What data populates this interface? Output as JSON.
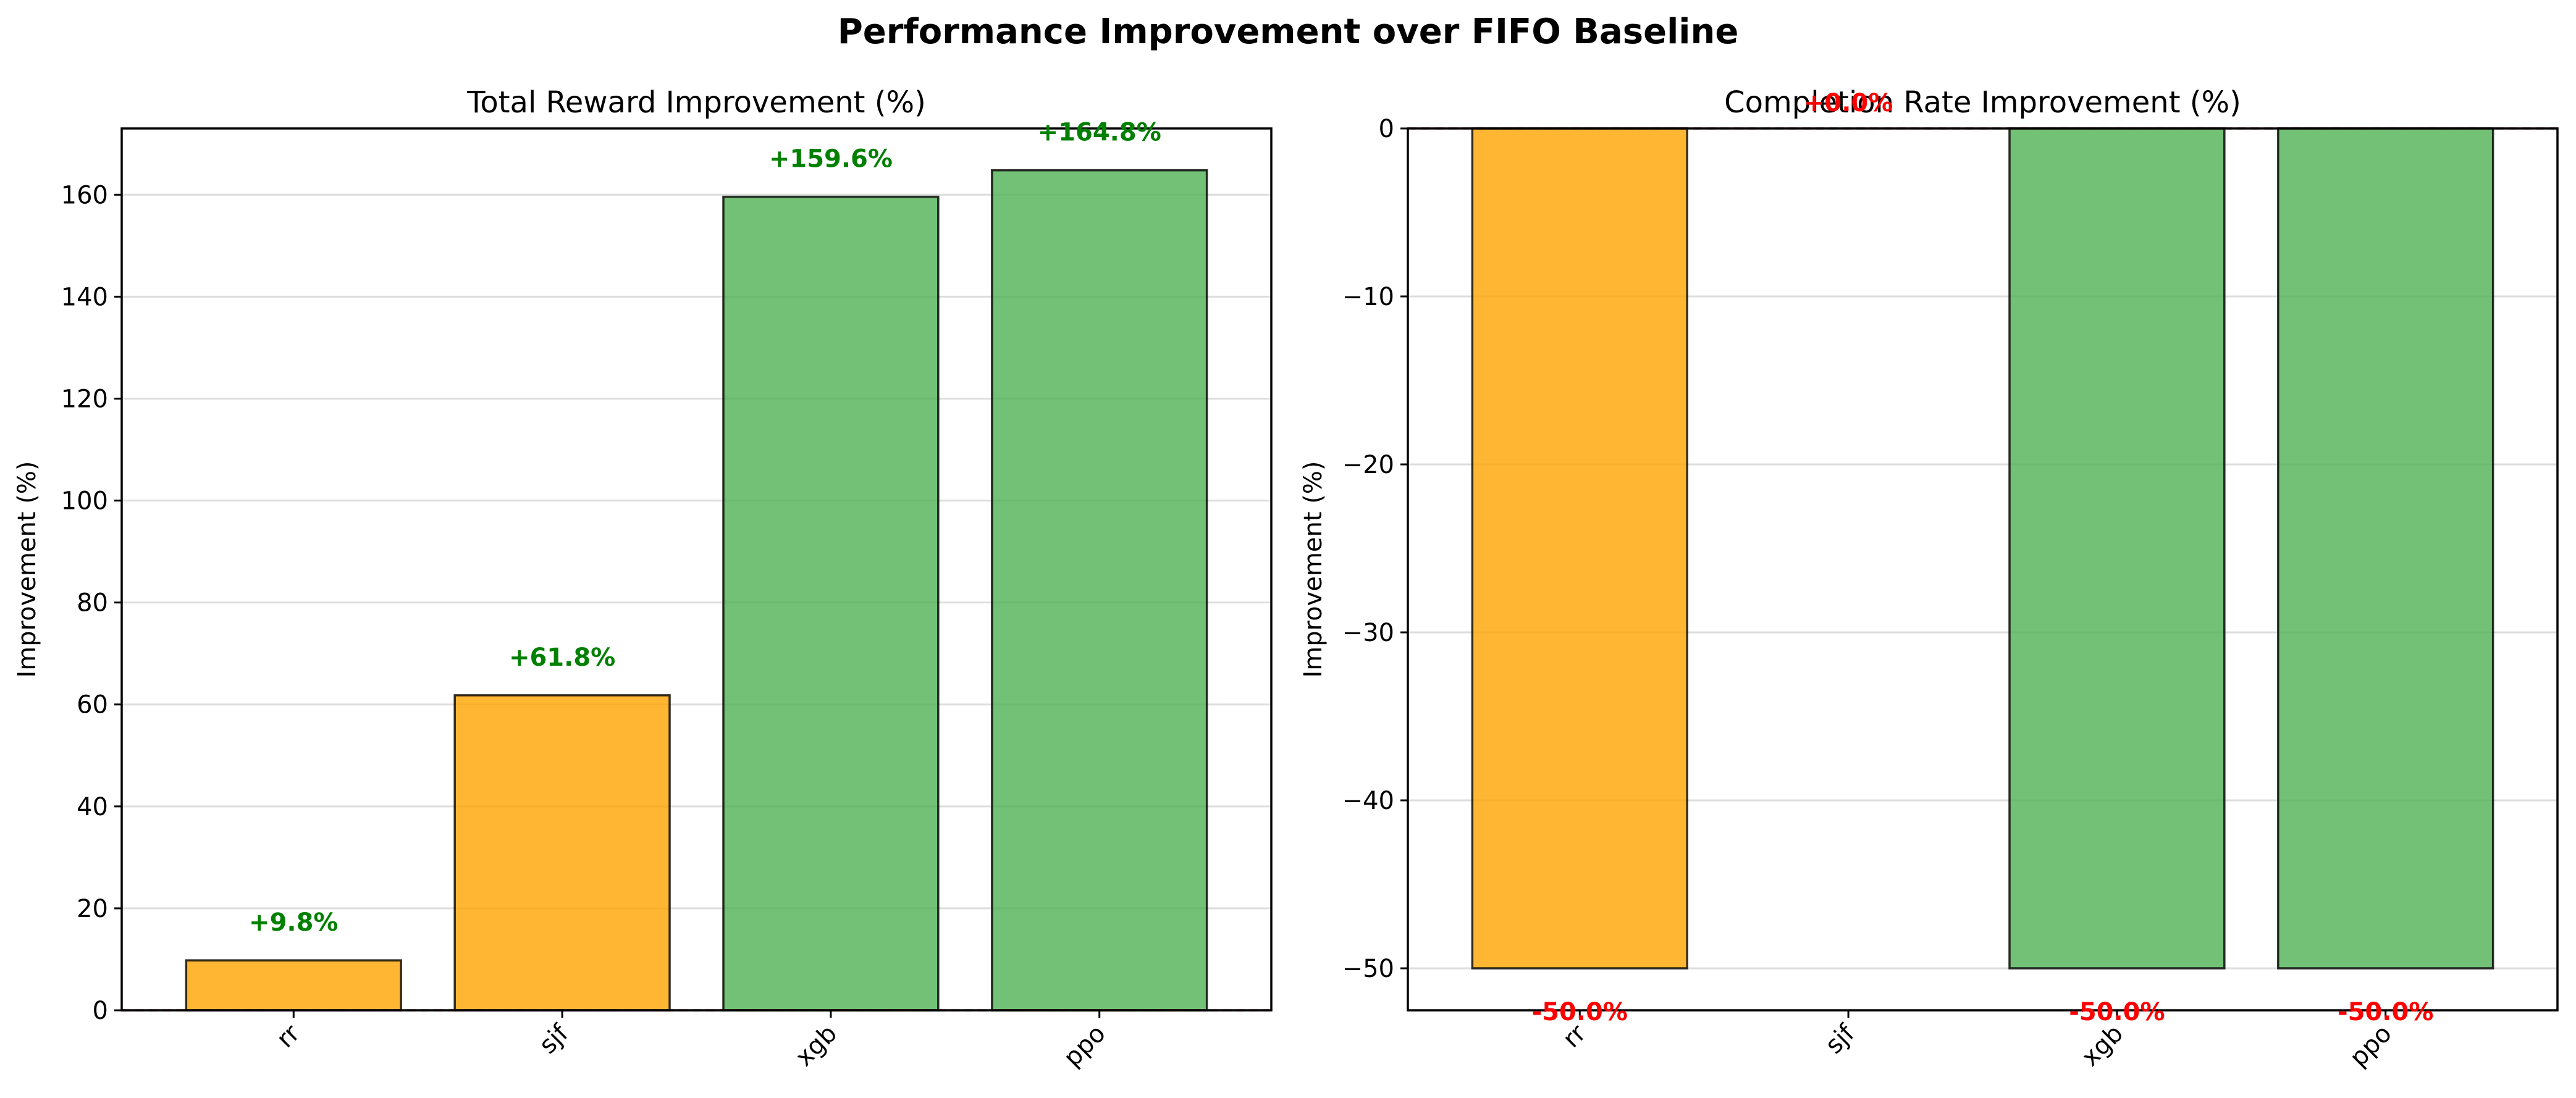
{
  "figure": {
    "suptitle": "Performance Improvement over FIFO Baseline"
  },
  "colors": {
    "orange": "#FFA500",
    "green": "#4CAF50",
    "positive_label": "#008000",
    "negative_label": "#FF0000",
    "baseline": "#B22222",
    "grid": "#dddddd"
  },
  "chart_data": [
    {
      "type": "bar",
      "title": "Total Reward Improvement (%)",
      "xlabel": "",
      "ylabel": "Improvement (%)",
      "categories": [
        "rr",
        "sjf",
        "xgb",
        "ppo"
      ],
      "values": [
        9.8,
        61.8,
        159.6,
        164.8
      ],
      "value_labels": [
        "+9.8%",
        "+61.8%",
        "+159.6%",
        "+164.8%"
      ],
      "bar_colors": [
        "orange",
        "orange",
        "green",
        "green"
      ],
      "ylim": [
        0,
        173
      ],
      "yticks": [
        0,
        20,
        40,
        60,
        80,
        100,
        120,
        140,
        160
      ],
      "grid": "y",
      "baseline": 0,
      "legend": "none"
    },
    {
      "type": "bar",
      "title": "Completion Rate Improvement (%)",
      "xlabel": "",
      "ylabel": "Improvement (%)",
      "categories": [
        "rr",
        "sjf",
        "xgb",
        "ppo"
      ],
      "values": [
        -50.0,
        0.0,
        -50.0,
        -50.0
      ],
      "value_labels": [
        "-50.0%",
        "+0.0%",
        "-50.0%",
        "-50.0%"
      ],
      "bar_colors": [
        "orange",
        "orange",
        "green",
        "green"
      ],
      "ylim": [
        -52.5,
        0
      ],
      "yticks": [
        -50,
        -40,
        -30,
        -20,
        -10,
        0
      ],
      "grid": "y",
      "baseline": 0,
      "legend": "none"
    }
  ]
}
